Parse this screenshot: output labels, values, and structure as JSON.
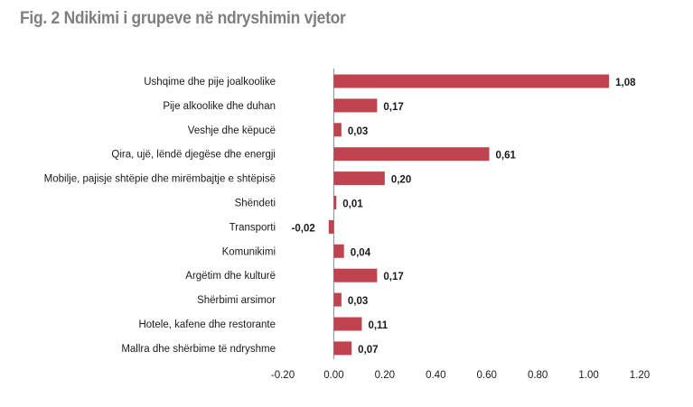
{
  "chart_data": {
    "type": "bar",
    "orientation": "horizontal",
    "title": "Fig. 2 Ndikimi i grupeve në ndryshimin vjetor",
    "categories": [
      "Ushqime dhe pije joalkoolike",
      "Pije alkoolike dhe duhan",
      "Veshje dhe këpucë",
      "Qira, ujë, lëndë djegëse dhe energji",
      "Mobilje, pajisje shtëpie dhe mirëmbajtje e shtëpisë",
      "Shëndeti",
      "Transporti",
      "Komunikimi",
      "Argëtim dhe kulturë",
      "Shërbimi arsimor",
      "Hotele, kafene dhe restorante",
      "Mallra dhe shërbime të ndryshme"
    ],
    "values": [
      1.08,
      0.17,
      0.03,
      0.61,
      0.2,
      0.01,
      -0.02,
      0.04,
      0.17,
      0.03,
      0.11,
      0.07
    ],
    "data_labels": [
      "1,08",
      "0,17",
      "0,03",
      "0,61",
      "0,20",
      "0,01",
      "-0,02",
      "0,04",
      "0,17",
      "0,03",
      "0,11",
      "0,07"
    ],
    "xlim": [
      -0.2,
      1.2
    ],
    "xticks": [
      -0.2,
      0,
      0.2,
      0.4,
      0.6,
      0.8,
      1.0,
      1.2
    ],
    "xtick_labels": [
      "-0.20",
      "0.00",
      "0.20",
      "0.40",
      "0.60",
      "0.80",
      "1.00",
      "1.20"
    ],
    "bar_color": "#c0444f",
    "grid": false,
    "legend": "none"
  }
}
